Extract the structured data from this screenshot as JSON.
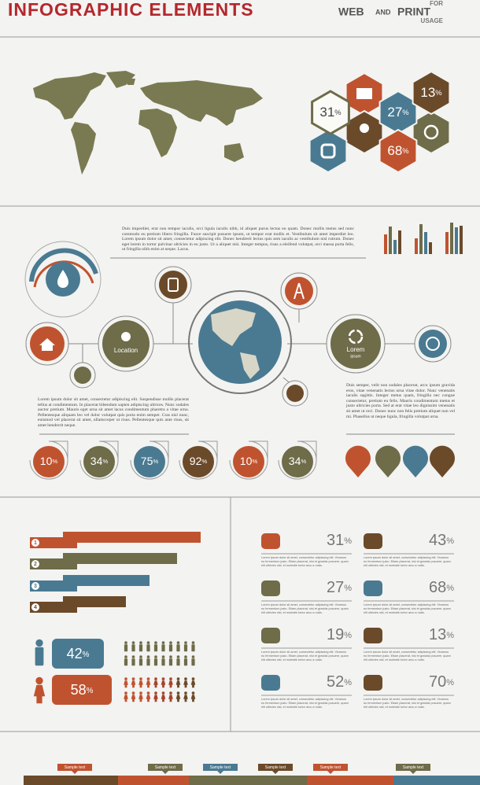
{
  "header": {
    "title": "INFOGRAPHIC ELEMENTS",
    "web": "WEB",
    "and": "AND",
    "print": "PRINT",
    "for": "FOR",
    "usage": "USAGE"
  },
  "hexagons": [
    {
      "value": 31,
      "unit": "%"
    },
    {
      "value": 27,
      "unit": "%"
    },
    {
      "value": 13,
      "unit": "%"
    },
    {
      "value": 68,
      "unit": "%"
    }
  ],
  "hub": {
    "paragraph_top": "Duis imperdiet, erat non tempor iaculis, orci ligula iaculis nibh, id aliquet purus lectus eu quam. Donec mollis metus sed nunc commodo eu pretium libero fringilla. Fusce suscipit posuere ipsum, ut tempor erat mollis et. Vestibulum sit amet imperdiet leo. Lorem ipsum dolor sit amet, consectetur adipiscing elit. Donec hendrerit lectus quis sem iaculis ac vestibulum nisl rutrum. Donec eget lorem in tortor pulvinar ultricies in eu justo. Ut a aliquet nisi. Integer tempus, risus a eleifend volutpat, orci massa porta felis, ut fringilla nibh enim at neque. Lacus.",
    "location": "Location",
    "lorem_title": "Lorem",
    "lorem_sub": "ipsum",
    "paragraph_left": "Lorem ipsum dolor sit amet, consectetur adipiscing elit. Suspendisse mollis placerat tellus at condimentum. In placerat bibendum sapien adipiscing ultrices. Nunc sodales auctor pretium. Mauris eget urna sit amet lacus condimentum pharetra a vitae urna. Pellentesque aliquam leo vel dolor volutpat quis porta enim semper. Cras nisl nunc, euismod vel placerat sit amet, ullamcorper ut risus. Pellentesque quis ante risus, sit amet hendrerit neque.",
    "paragraph_right": "Duis semper, velit non sodales placerat, arcu ipsum gravida eros, vitae venenatis lectus urna vitae dolor. Nunc venenatis iaculis sagittis. Integer metus quam, fringilla nec congue consectetur, pretium eu felis. Mauris condimentum metus et justo ultricies porta. Sed at erat vitae leo dignissim venenatis sit amet ut orci. Donec nunc non felis pretium aliquet non vel mi. Phasellus ut neque ligula, fringilla volutpat urna."
  },
  "drops": [
    {
      "value": 10,
      "unit": "%"
    },
    {
      "value": 34,
      "unit": "%"
    },
    {
      "value": 75,
      "unit": "%"
    },
    {
      "value": 92,
      "unit": "%"
    },
    {
      "value": 10,
      "unit": "%"
    },
    {
      "value": 34,
      "unit": "%"
    }
  ],
  "ranking": {
    "labels": [
      "1",
      "2",
      "3",
      "4"
    ]
  },
  "gender": {
    "male": {
      "value": 42,
      "unit": "%"
    },
    "female": {
      "value": 58,
      "unit": "%"
    }
  },
  "stats": [
    {
      "value": 31,
      "unit": "%",
      "text": "Lorem ipsum dolor sit amet, consectetur adipiscing elit. Vivamus eu fermentum justo. Etiam placerat, nisi et gravida posuere, quam elit ultricies nisl, et molestie tortor arcu a nulla."
    },
    {
      "value": 43,
      "unit": "%",
      "text": "Lorem ipsum dolor sit amet, consectetur adipiscing elit. Vivamus eu fermentum justo. Etiam placerat, nisi et gravida posuere, quam elit ultricies nisl, et molestie tortor arcu a nulla."
    },
    {
      "value": 27,
      "unit": "%",
      "text": "Lorem ipsum dolor sit amet, consectetur adipiscing elit. Vivamus eu fermentum justo. Etiam placerat, nisi et gravida posuere, quam elit ultricies nisl, et molestie tortor arcu a nulla."
    },
    {
      "value": 68,
      "unit": "%",
      "text": "Lorem ipsum dolor sit amet, consectetur adipiscing elit. Vivamus eu fermentum justo. Etiam placerat, nisi et gravida posuere, quam elit ultricies nisl, et molestie tortor arcu a nulla."
    },
    {
      "value": 19,
      "unit": "%",
      "text": "Lorem ipsum dolor sit amet, consectetur adipiscing elit. Vivamus eu fermentum justo. Etiam placerat, nisi et gravida posuere, quam elit ultricies nisl, et molestie tortor arcu a nulla."
    },
    {
      "value": 13,
      "unit": "%",
      "text": "Lorem ipsum dolor sit amet, consectetur adipiscing elit. Vivamus eu fermentum justo. Etiam placerat, nisi et gravida posuere, quam elit ultricies nisl, et molestie tortor arcu a nulla."
    },
    {
      "value": 52,
      "unit": "%",
      "text": "Lorem ipsum dolor sit amet, consectetur adipiscing elit. Vivamus eu fermentum justo. Etiam placerat, nisi et gravida posuere, quam elit ultricies nisl, et molestie tortor arcu a nulla."
    },
    {
      "value": 70,
      "unit": "%",
      "text": "Lorem ipsum dolor sit amet, consectetur adipiscing elit. Vivamus eu fermentum justo. Etiam placerat, nisi et gravida posuere, quam elit ultricies nisl, et molestie tortor arcu a nulla."
    }
  ],
  "timeline": [
    "Sample text",
    "Sample text",
    "Sample text",
    "Sample text",
    "Sample text",
    "Sample text"
  ]
}
